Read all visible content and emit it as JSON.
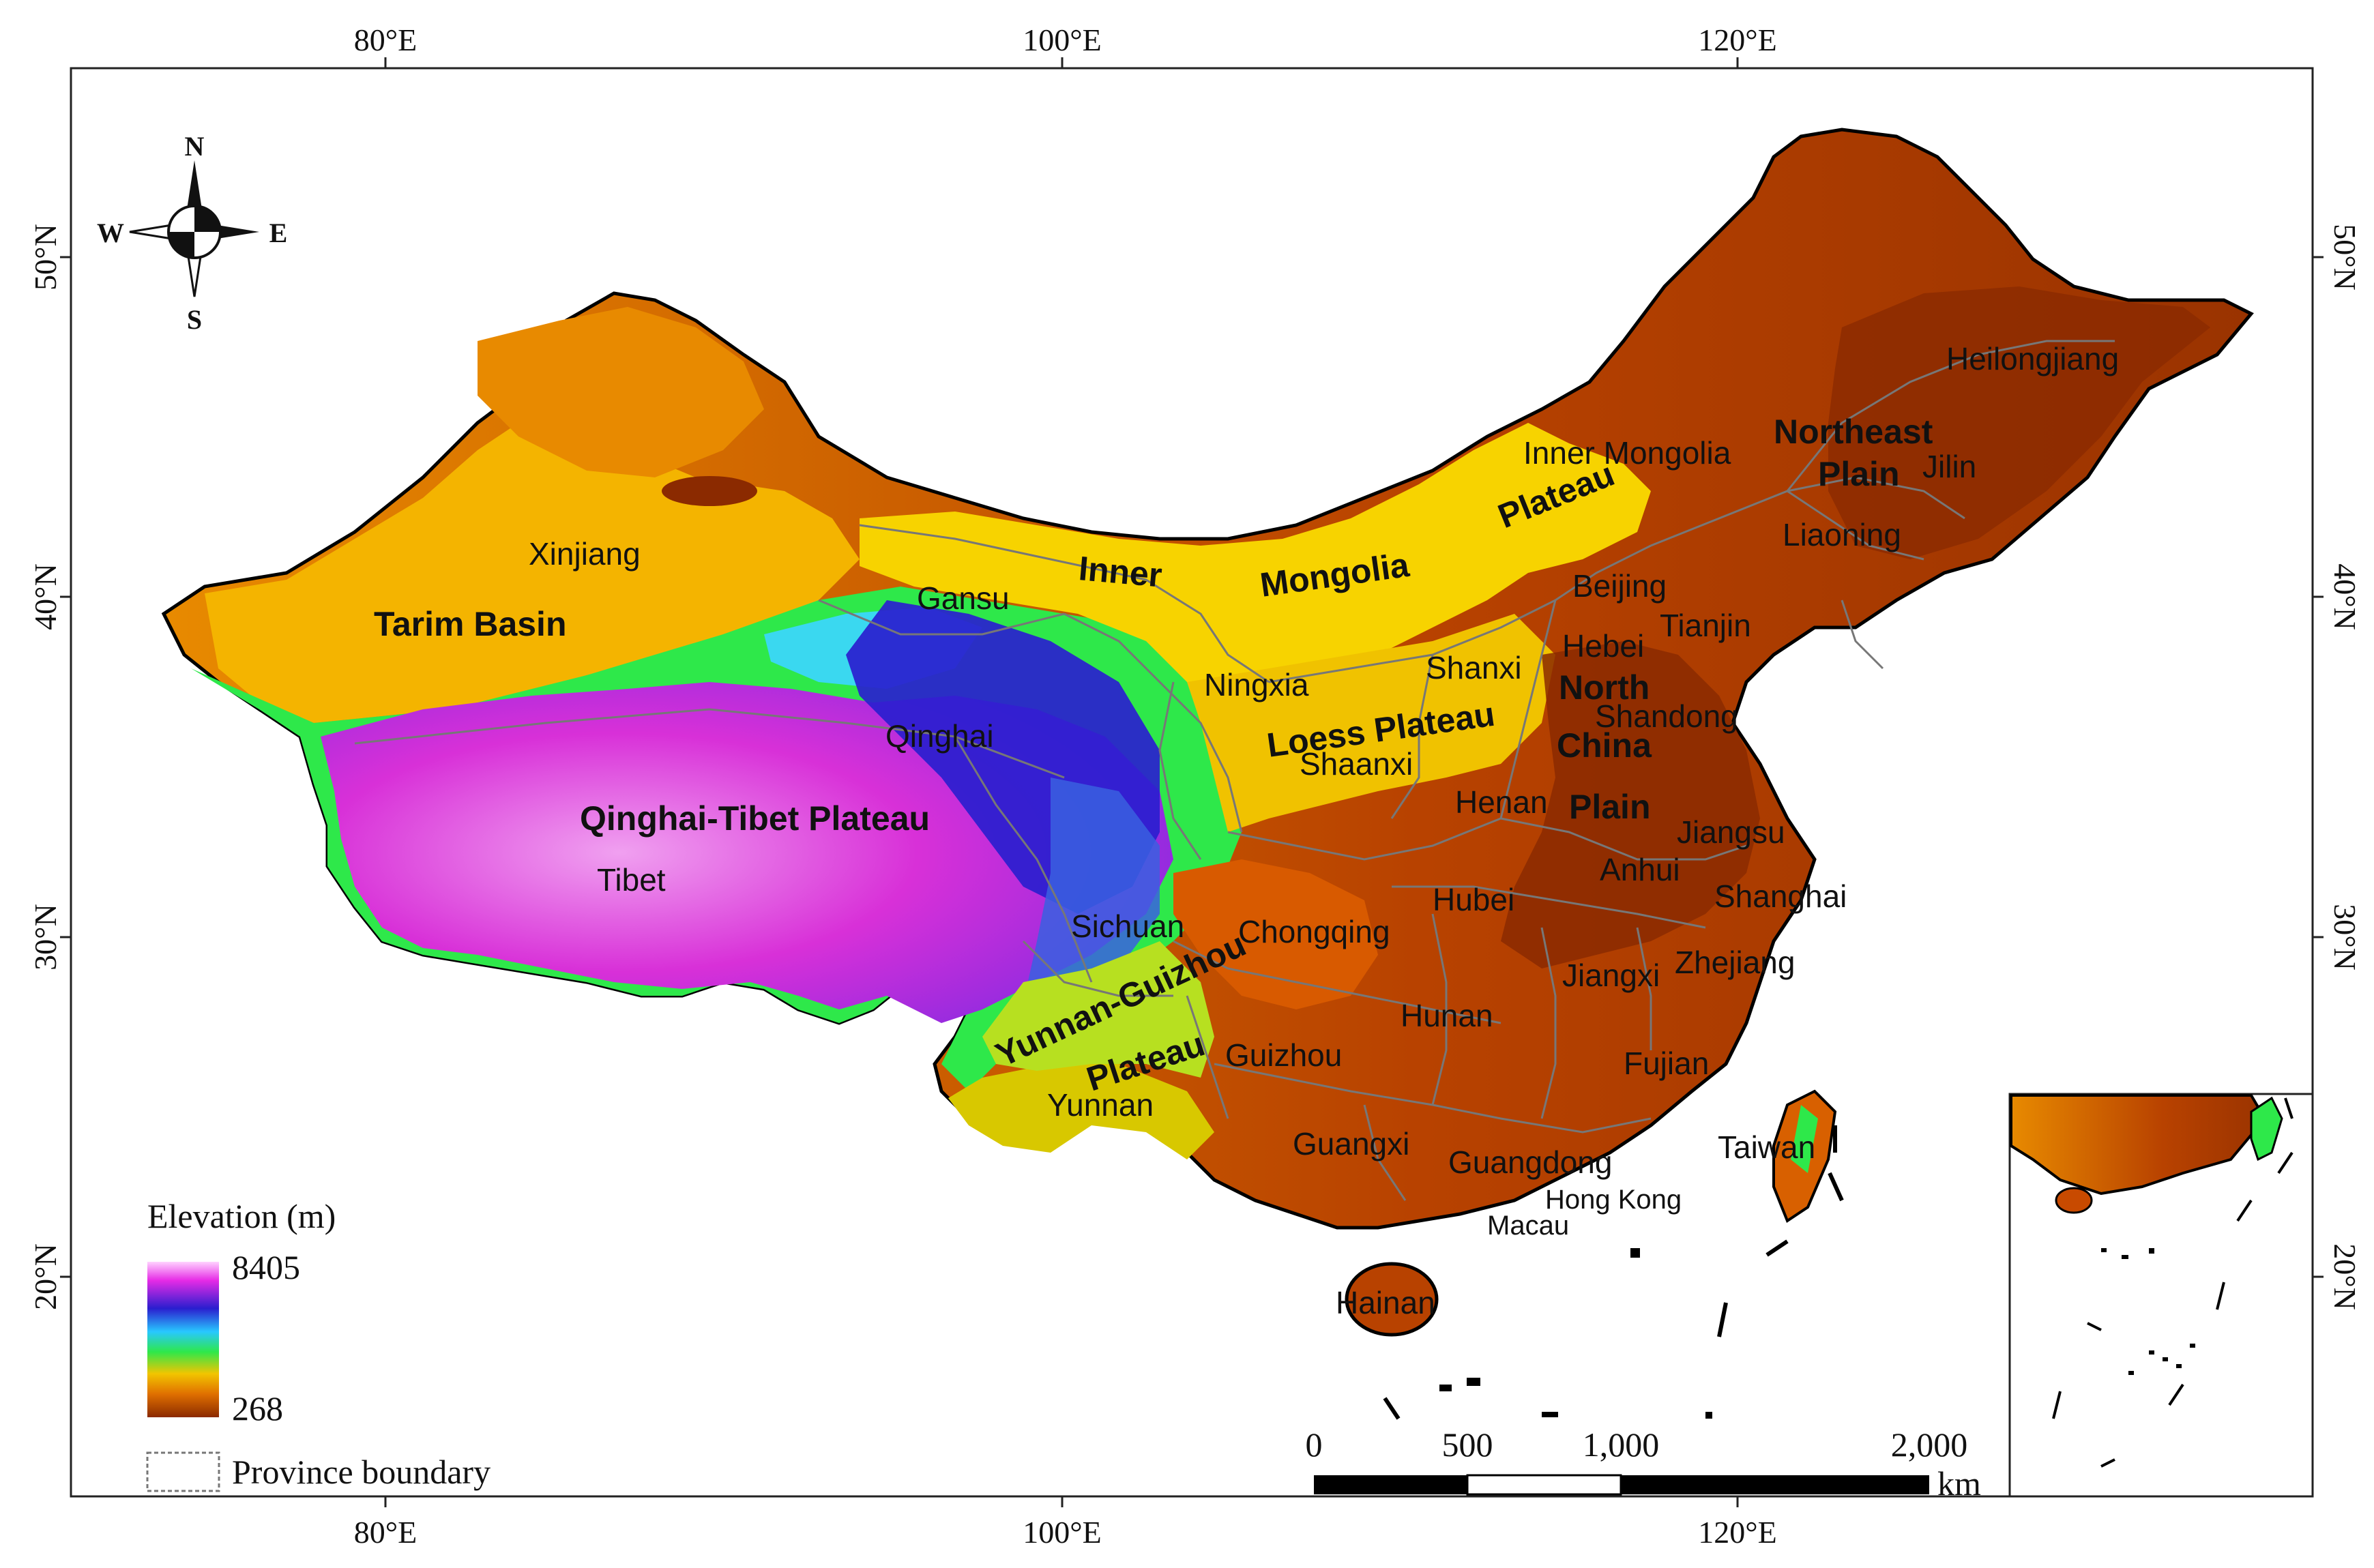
{
  "axes": {
    "lon_ticks": [
      "80°E",
      "100°E",
      "120°E"
    ],
    "lat_ticks": [
      "50°N",
      "40°N",
      "30°N",
      "20°N"
    ]
  },
  "compass": {
    "n": "N",
    "s": "S",
    "e": "E",
    "w": "W"
  },
  "provinces": {
    "xinjiang": "Xinjiang",
    "tibet": "Tibet",
    "qinghai": "Qinghai",
    "gansu": "Gansu",
    "sichuan": "Sichuan",
    "yunnan": "Yunnan",
    "guizhou": "Guizhou",
    "chongqing": "Chongqing",
    "ningxia": "Ningxia",
    "shaanxi": "Shaanxi",
    "shanxi": "Shanxi",
    "inner_mongolia": "Inner Mongolia",
    "heilongjiang": "Heilongjiang",
    "jilin": "Jilin",
    "liaoning": "Liaoning",
    "beijing": "Beijing",
    "tianjin": "Tianjin",
    "hebei": "Hebei",
    "shandong": "Shandong",
    "henan": "Henan",
    "jiangsu": "Jiangsu",
    "anhui": "Anhui",
    "shanghai": "Shanghai",
    "hubei": "Hubei",
    "hunan": "Hunan",
    "jiangxi": "Jiangxi",
    "zhejiang": "Zhejiang",
    "fujian": "Fujian",
    "guangxi": "Guangxi",
    "guangdong": "Guangdong",
    "hong_kong": "Hong Kong",
    "macau": "Macau",
    "taiwan": "Taiwan",
    "hainan": "Hainan"
  },
  "regions": {
    "tarim": "Tarim Basin",
    "qt_plateau": "Qinghai-Tibet Plateau",
    "im_plateau_1": "Inner",
    "im_plateau_2": "Mongolia",
    "im_plateau_3": "Plateau",
    "loess": "Loess Plateau",
    "ne_plain_1": "Northeast",
    "ne_plain_2": "Plain",
    "nc_plain_1": "North",
    "nc_plain_2": "China",
    "nc_plain_3": "Plain",
    "yg_plateau_1": "Yunnan-Guizhou",
    "yg_plateau_2": "Plateau"
  },
  "legend": {
    "title": "Elevation (m)",
    "max": "8405",
    "min": "268",
    "boundary_label": "Province boundary"
  },
  "scale_bar": {
    "ticks": [
      "0",
      "500",
      "1,000",
      "2,000"
    ],
    "unit": "km"
  },
  "colors": {
    "low": "#8b2a00",
    "orange": "#e07000",
    "yellow": "#f2c500",
    "green": "#2ee84a",
    "cyan": "#28c8ff",
    "blue": "#2a1ecf",
    "magenta": "#e62be6",
    "high": "#ffd2ff"
  }
}
